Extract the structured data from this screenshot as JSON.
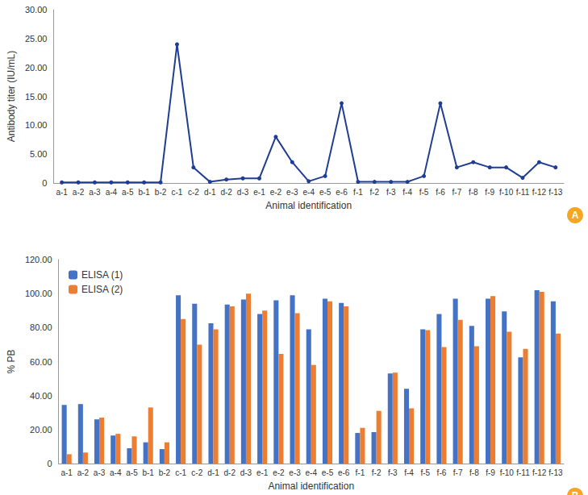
{
  "chart_data": [
    {
      "type": "line",
      "annotation": "A",
      "x_label": "Animal identification",
      "y_label": "Antibody titer (IU/mL)",
      "categories": [
        "a-1",
        "a-2",
        "a-3",
        "a-4",
        "a-5",
        "b-1",
        "b-2",
        "c-1",
        "c-2",
        "d-1",
        "d-2",
        "d-3",
        "e-1",
        "e-2",
        "e-3",
        "e-4",
        "e-5",
        "e-6",
        "f-1",
        "f-2",
        "f-3",
        "f-4",
        "f-5",
        "f-6",
        "f-7",
        "f-8",
        "f-9",
        "f-10",
        "f-11",
        "f-12",
        "f-13"
      ],
      "values": [
        0.1,
        0.1,
        0.1,
        0.1,
        0.1,
        0.1,
        0.1,
        24,
        2.7,
        0.2,
        0.6,
        0.8,
        0.8,
        8,
        3.6,
        0.3,
        1.2,
        13.8,
        0.2,
        0.2,
        0.2,
        0.2,
        1.2,
        13.8,
        2.7,
        3.6,
        2.7,
        2.7,
        0.9,
        3.6,
        2.7
      ],
      "color": "#1f3d93",
      "marker": "circle",
      "ylim": [
        0,
        30
      ],
      "yticks": [
        0,
        {
          "value": 5,
          "label": "5.00"
        },
        {
          "value": 10,
          "label": "10.00"
        },
        {
          "value": 15,
          "label": "15.00"
        },
        {
          "value": 20,
          "label": "20.00"
        },
        {
          "value": 25,
          "label": "25.00"
        },
        {
          "value": 30,
          "label": "30.00"
        }
      ],
      "grid": false
    },
    {
      "type": "bar",
      "annotation": "B",
      "x_label": "Animal identification",
      "y_label": "% PB",
      "categories": [
        "a-1",
        "a-2",
        "a-3",
        "a-4",
        "a-5",
        "b-1",
        "b-2",
        "c-1",
        "c-2",
        "d-1",
        "d-2",
        "d-3",
        "e-1",
        "e-2",
        "e-3",
        "e-4",
        "e-5",
        "e-6",
        "f-1",
        "f-2",
        "f-3",
        "f-4",
        "f-5",
        "f-6",
        "f-7",
        "f-8",
        "f-9",
        "f-10",
        "f-11",
        "f-12",
        "f-13"
      ],
      "series": [
        {
          "name": "ELISA (1)",
          "color": "#4472c4",
          "values": [
            34.5,
            35,
            26,
            16.5,
            9,
            12.5,
            8.5,
            99,
            94,
            82.5,
            93.5,
            96.5,
            88,
            96,
            99,
            79,
            97,
            94.5,
            18,
            18.5,
            53,
            44,
            79,
            88,
            97,
            81,
            97,
            89.5,
            62.5,
            102,
            95.5
          ]
        },
        {
          "name": "ELISA (2)",
          "color": "#ed7d31",
          "values": [
            5.5,
            6.5,
            27,
            17.5,
            16,
            33,
            12.5,
            85,
            70,
            79,
            92.5,
            100,
            90,
            64.5,
            88.5,
            58,
            95.5,
            92.5,
            21,
            31,
            53.5,
            32.5,
            78.5,
            68.5,
            84.5,
            69,
            98.5,
            77.5,
            67.5,
            101,
            76.5
          ]
        }
      ],
      "ylim": [
        0,
        120
      ],
      "yticks": [
        0,
        {
          "value": 20,
          "label": "20.00"
        },
        {
          "value": 40,
          "label": "40.00"
        },
        {
          "value": 60,
          "label": "60.00"
        },
        {
          "value": 80,
          "label": "80.00"
        },
        {
          "value": 100,
          "label": "100.00"
        },
        {
          "value": 120,
          "label": "120.00"
        }
      ],
      "legend": "top-left",
      "grid": false
    }
  ]
}
